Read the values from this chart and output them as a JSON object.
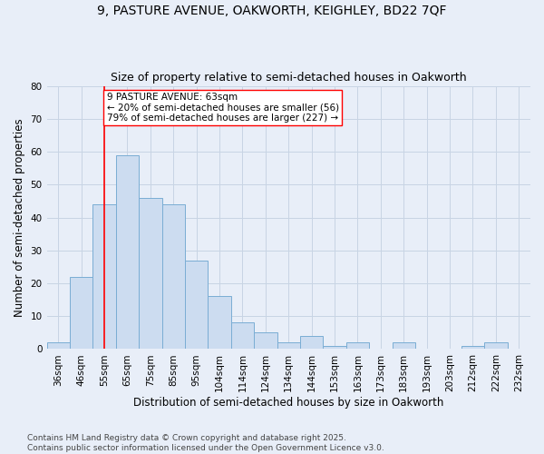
{
  "title1": "9, PASTURE AVENUE, OAKWORTH, KEIGHLEY, BD22 7QF",
  "title2": "Size of property relative to semi-detached houses in Oakworth",
  "xlabel": "Distribution of semi-detached houses by size in Oakworth",
  "ylabel": "Number of semi-detached properties",
  "categories": [
    "36sqm",
    "46sqm",
    "55sqm",
    "65sqm",
    "75sqm",
    "85sqm",
    "95sqm",
    "104sqm",
    "114sqm",
    "124sqm",
    "134sqm",
    "144sqm",
    "153sqm",
    "163sqm",
    "173sqm",
    "183sqm",
    "193sqm",
    "203sqm",
    "212sqm",
    "222sqm",
    "232sqm"
  ],
  "values": [
    2,
    22,
    44,
    59,
    46,
    44,
    27,
    16,
    8,
    5,
    2,
    4,
    1,
    2,
    0,
    2,
    0,
    0,
    1,
    2,
    0
  ],
  "bar_color": "#ccdcf0",
  "bar_edge_color": "#7aadd4",
  "grid_color": "#c8d4e4",
  "background_color": "#e8eef8",
  "vline_x": 2.0,
  "vline_color": "red",
  "annotation_text": "9 PASTURE AVENUE: 63sqm\n← 20% of semi-detached houses are smaller (56)\n79% of semi-detached houses are larger (227) →",
  "ylim": [
    0,
    80
  ],
  "yticks": [
    0,
    10,
    20,
    30,
    40,
    50,
    60,
    70,
    80
  ],
  "footer": "Contains HM Land Registry data © Crown copyright and database right 2025.\nContains public sector information licensed under the Open Government Licence v3.0.",
  "title_fontsize": 10,
  "subtitle_fontsize": 9,
  "axis_label_fontsize": 8.5,
  "tick_fontsize": 7.5,
  "annotation_fontsize": 7.5,
  "footer_fontsize": 6.5
}
